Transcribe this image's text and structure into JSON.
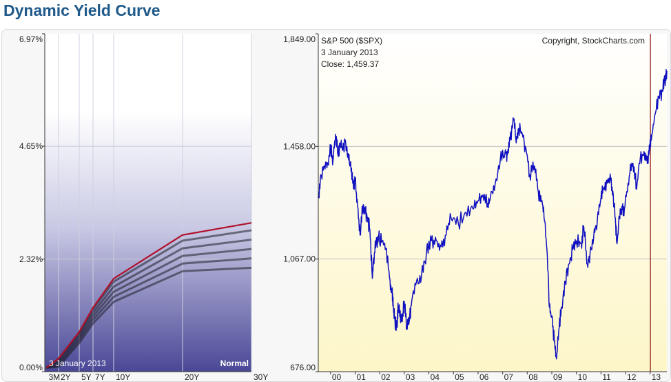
{
  "page": {
    "title": "Dynamic Yield Curve"
  },
  "chart_data": [
    {
      "type": "line",
      "name": "yield-curve",
      "ylim": [
        0,
        6.97
      ],
      "ytick_labels": [
        "6.97%",
        "4.65%",
        "2.32%",
        "0.00%"
      ],
      "ytick_values": [
        6.97,
        4.65,
        2.32,
        0.0
      ],
      "categories": [
        "3M",
        "2Y",
        "5Y",
        "7Y",
        "10Y",
        "20Y",
        "30Y"
      ],
      "x_years": [
        0.25,
        2,
        5,
        7,
        10,
        20,
        30
      ],
      "series": [
        {
          "values": [
            0.08,
            0.27,
            0.82,
            1.32,
            1.92,
            2.82,
            3.07
          ]
        }
      ],
      "date_label": "3  January 2013",
      "shape_label": "Normal",
      "colors": {
        "current": "#b0102a",
        "band_top": "#e6e6f3",
        "band_bottom": "#4a4896",
        "history": "#1e1e28"
      }
    },
    {
      "type": "line",
      "name": "sp500",
      "title": "S&P 500 ($SPX)",
      "copyright": "Copyright, StockCharts.com",
      "date_label": "3  January 2013",
      "close_label": "Close: 1,459.37",
      "ylim": [
        676,
        1849
      ],
      "ytick_labels": [
        "1,849.00",
        "1,458.00",
        "1,067.00",
        "676.00"
      ],
      "ytick_values": [
        1849,
        1458,
        1067,
        676
      ],
      "xlim": [
        1999.5,
        2013.68
      ],
      "xtick_labels": [
        "00",
        "01",
        "02",
        "03",
        "04",
        "05",
        "06",
        "07",
        "08",
        "09",
        "10",
        "11",
        "12",
        "13"
      ],
      "xtick_values": [
        2000,
        2001,
        2002,
        2003,
        2004,
        2005,
        2006,
        2007,
        2008,
        2009,
        2010,
        2011,
        2012,
        2013
      ],
      "marker_x": 2013.01,
      "x": [
        1999.5,
        1999.6,
        1999.75,
        1999.9,
        2000.0,
        2000.1,
        2000.2,
        2000.3,
        2000.4,
        2000.5,
        2000.6,
        2000.7,
        2000.8,
        2000.9,
        2001.0,
        2001.1,
        2001.2,
        2001.3,
        2001.4,
        2001.5,
        2001.6,
        2001.7,
        2001.75,
        2001.85,
        2001.95,
        2002.1,
        2002.25,
        2002.4,
        2002.5,
        2002.55,
        2002.6,
        2002.7,
        2002.75,
        2002.8,
        2002.9,
        2003.0,
        2003.1,
        2003.2,
        2003.3,
        2003.5,
        2003.7,
        2003.9,
        2004.1,
        2004.3,
        2004.5,
        2004.7,
        2004.9,
        2005.2,
        2005.5,
        2005.8,
        2006.0,
        2006.2,
        2006.4,
        2006.5,
        2006.7,
        2006.9,
        2007.1,
        2007.2,
        2007.3,
        2007.45,
        2007.55,
        2007.65,
        2007.8,
        2007.95,
        2008.1,
        2008.3,
        2008.45,
        2008.6,
        2008.7,
        2008.8,
        2008.9,
        2009.0,
        2009.1,
        2009.19,
        2009.3,
        2009.4,
        2009.55,
        2009.7,
        2009.85,
        2010.0,
        2010.2,
        2010.3,
        2010.45,
        2010.55,
        2010.7,
        2010.85,
        2011.0,
        2011.1,
        2011.25,
        2011.4,
        2011.5,
        2011.6,
        2011.65,
        2011.75,
        2011.85,
        2011.95,
        2012.1,
        2012.25,
        2012.4,
        2012.45,
        2012.6,
        2012.75,
        2012.85,
        2012.95,
        2013.05,
        2013.2,
        2013.35,
        2013.5,
        2013.6,
        2013.68
      ],
      "values": [
        1280,
        1360,
        1390,
        1400,
        1450,
        1410,
        1500,
        1430,
        1470,
        1450,
        1480,
        1420,
        1400,
        1330,
        1340,
        1250,
        1150,
        1250,
        1230,
        1210,
        1170,
        1000,
        1070,
        1120,
        1140,
        1130,
        1100,
        1000,
        950,
        900,
        860,
        830,
        900,
        890,
        850,
        920,
        830,
        850,
        920,
        990,
        1010,
        1090,
        1130,
        1130,
        1110,
        1150,
        1210,
        1190,
        1230,
        1240,
        1270,
        1290,
        1260,
        1280,
        1330,
        1410,
        1440,
        1430,
        1480,
        1550,
        1470,
        1520,
        1500,
        1450,
        1360,
        1390,
        1300,
        1270,
        1200,
        1100,
        900,
        870,
        780,
        720,
        830,
        900,
        990,
        1050,
        1100,
        1130,
        1120,
        1180,
        1050,
        1080,
        1140,
        1200,
        1280,
        1310,
        1330,
        1340,
        1290,
        1180,
        1120,
        1210,
        1250,
        1240,
        1330,
        1400,
        1360,
        1310,
        1420,
        1440,
        1410,
        1430,
        1480,
        1570,
        1630,
        1650,
        1690,
        1720
      ],
      "colors": {
        "line": "#1010c0",
        "marker": "#8b1010",
        "bg_top": "#ffffff",
        "bg_bottom": "#fdf6c8",
        "grid": "#c8c8c8"
      }
    }
  ]
}
